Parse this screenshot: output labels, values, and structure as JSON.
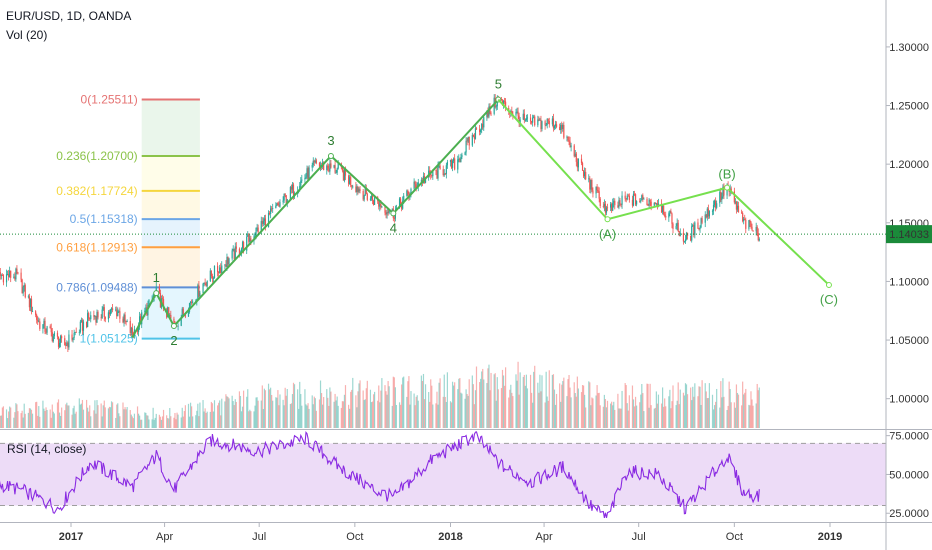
{
  "header": {
    "symbol": "EUR/USD, 1D, OANDA",
    "volume_label": "Vol (20)",
    "rsi_label": "RSI (14, close)"
  },
  "colors": {
    "up": "#26a69a",
    "down": "#ef5350",
    "wave_main": "#4caf50",
    "wave_corrective": "#76e04e",
    "rsi_line": "#8a2be2",
    "rsi_band": "#eddcf7",
    "last_price_bg": "#1b8a3a"
  },
  "chart_data": [
    {
      "type": "candlestick",
      "x_ticks": [
        {
          "label": "2017",
          "bold": true,
          "x": "2017-01-01"
        },
        {
          "label": "Apr",
          "bold": false,
          "x": "2017-04-01"
        },
        {
          "label": "Jul",
          "bold": false,
          "x": "2017-07-01"
        },
        {
          "label": "Oct",
          "bold": false,
          "x": "2017-10-01"
        },
        {
          "label": "2018",
          "bold": true,
          "x": "2018-01-01"
        },
        {
          "label": "Apr",
          "bold": false,
          "x": "2018-04-01"
        },
        {
          "label": "Jul",
          "bold": false,
          "x": "2018-07-01"
        },
        {
          "label": "Oct",
          "bold": false,
          "x": "2018-10-01"
        },
        {
          "label": "2019",
          "bold": true,
          "x": "2019-01-01"
        }
      ],
      "y_ticks": [
        "1.30000",
        "1.25000",
        "1.20000",
        "1.15000",
        "1.10000",
        "1.05000",
        "1.00000"
      ],
      "ylim": [
        0.975,
        1.34
      ],
      "last_price": "1.14033",
      "price_path": [
        [
          "2016-10-15",
          1.105
        ],
        [
          "2016-11-10",
          1.105
        ],
        [
          "2016-12-01",
          1.065
        ],
        [
          "2016-12-25",
          1.045
        ],
        [
          "2017-01-20",
          1.07
        ],
        [
          "2017-02-15",
          1.075
        ],
        [
          "2017-03-01",
          1.055
        ],
        [
          "2017-03-24",
          1.09
        ],
        [
          "2017-04-10",
          1.062
        ],
        [
          "2017-05-10",
          1.1
        ],
        [
          "2017-06-15",
          1.13
        ],
        [
          "2017-07-20",
          1.165
        ],
        [
          "2017-08-25",
          1.2
        ],
        [
          "2017-09-15",
          1.195
        ],
        [
          "2017-10-10",
          1.175
        ],
        [
          "2017-11-07",
          1.158
        ],
        [
          "2017-12-01",
          1.185
        ],
        [
          "2018-01-05",
          1.2
        ],
        [
          "2018-02-15",
          1.255
        ],
        [
          "2018-03-15",
          1.235
        ],
        [
          "2018-04-15",
          1.235
        ],
        [
          "2018-05-10",
          1.19
        ],
        [
          "2018-06-01",
          1.16
        ],
        [
          "2018-06-20",
          1.17
        ],
        [
          "2018-07-20",
          1.168
        ],
        [
          "2018-08-15",
          1.135
        ],
        [
          "2018-09-24",
          1.18
        ],
        [
          "2018-10-10",
          1.15
        ],
        [
          "2018-10-25",
          1.14
        ]
      ],
      "volume_path": [
        [
          "2016-10-15",
          0.18
        ],
        [
          "2017-01-15",
          0.25
        ],
        [
          "2017-04-01",
          0.15
        ],
        [
          "2017-07-01",
          0.35
        ],
        [
          "2017-10-01",
          0.4
        ],
        [
          "2018-01-01",
          0.45
        ],
        [
          "2018-03-01",
          0.55
        ],
        [
          "2018-06-01",
          0.35
        ],
        [
          "2018-10-01",
          0.4
        ],
        [
          "2018-10-25",
          0.35
        ]
      ],
      "waves": [
        {
          "label": "1",
          "x": "2017-03-24",
          "y": 1.09,
          "label_pos": "above"
        },
        {
          "label": "2",
          "x": "2017-04-10",
          "y": 1.062,
          "label_pos": "below"
        },
        {
          "label": "3",
          "x": "2017-09-08",
          "y": 1.207,
          "label_pos": "above"
        },
        {
          "label": "4",
          "x": "2017-11-07",
          "y": 1.158,
          "label_pos": "below"
        },
        {
          "label": "5",
          "x": "2018-02-16",
          "y": 1.2551,
          "label_pos": "above"
        }
      ],
      "wave_start": {
        "x": "2017-03-01",
        "y": 1.052
      },
      "corrective_waves": [
        {
          "label": "(A)",
          "x": "2018-06-01",
          "y": 1.153,
          "label_pos": "below"
        },
        {
          "label": "(B)",
          "x": "2018-09-24",
          "y": 1.18,
          "label_pos": "above"
        },
        {
          "label": "(C)",
          "x": "2018-12-31",
          "y": 1.097,
          "label_pos": "below"
        }
      ],
      "fib_levels": [
        {
          "label": "0(1.25511)",
          "value": 1.25511,
          "color": "#e57373"
        },
        {
          "label": "0.236(1.20700)",
          "value": 1.207,
          "color": "#8bc34a"
        },
        {
          "label": "0.382(1.17724)",
          "value": 1.17724,
          "color": "#f5d63d"
        },
        {
          "label": "0.5(1.15318)",
          "value": 1.15318,
          "color": "#6ba6e6"
        },
        {
          "label": "0.618(1.12913)",
          "value": 1.12913,
          "color": "#ff9f40"
        },
        {
          "label": "0.786(1.09488)",
          "value": 1.09488,
          "color": "#5f8fd6"
        },
        {
          "label": "1(1.05125)",
          "value": 1.05125,
          "color": "#4fc3e8"
        }
      ],
      "fib_fills": [
        "#e8f5e9",
        "#fffde7",
        "#fff8e1",
        "#e3f2fd",
        "#fff3e0",
        "#e1f5fe"
      ],
      "fib_x_range": [
        "2017-03-10",
        "2017-05-05"
      ]
    },
    {
      "type": "line",
      "name": "RSI (14, close)",
      "y_ticks": [
        "75.0000",
        "50.0000",
        "25.0000"
      ],
      "ylim": [
        20,
        78
      ],
      "band": [
        30,
        70
      ],
      "path": [
        [
          "2016-10-15",
          45
        ],
        [
          "2016-11-15",
          40
        ],
        [
          "2016-12-20",
          28
        ],
        [
          "2017-01-20",
          58
        ],
        [
          "2017-03-01",
          42
        ],
        [
          "2017-03-24",
          62
        ],
        [
          "2017-04-10",
          40
        ],
        [
          "2017-05-15",
          72
        ],
        [
          "2017-07-01",
          65
        ],
        [
          "2017-08-15",
          73
        ],
        [
          "2017-09-15",
          55
        ],
        [
          "2017-10-20",
          40
        ],
        [
          "2017-11-07",
          35
        ],
        [
          "2017-12-15",
          60
        ],
        [
          "2018-01-25",
          75
        ],
        [
          "2018-02-20",
          55
        ],
        [
          "2018-03-20",
          45
        ],
        [
          "2018-04-20",
          55
        ],
        [
          "2018-05-15",
          30
        ],
        [
          "2018-06-01",
          22
        ],
        [
          "2018-06-20",
          52
        ],
        [
          "2018-07-20",
          50
        ],
        [
          "2018-08-15",
          28
        ],
        [
          "2018-09-24",
          62
        ],
        [
          "2018-10-10",
          38
        ],
        [
          "2018-10-25",
          36
        ]
      ]
    }
  ]
}
